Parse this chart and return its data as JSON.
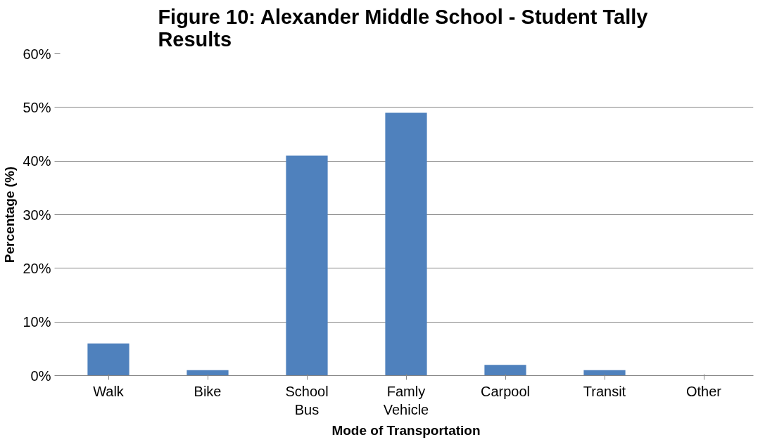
{
  "chart_data": {
    "type": "bar",
    "title": "Figure 10:  Alexander Middle School - Student Tally Results",
    "xlabel": "Mode of Transportation",
    "ylabel": "Percentage (%)",
    "categories": [
      "Walk",
      "Bike",
      "School Bus",
      "Famly Vehicle",
      "Carpool",
      "Transit",
      "Other"
    ],
    "values": [
      6,
      1,
      41,
      49,
      2,
      1,
      0
    ],
    "color": "#4f81bd",
    "ylim": [
      0,
      60
    ],
    "yticks": [
      {
        "value": 0,
        "label": "0%"
      },
      {
        "value": 10,
        "label": "10%"
      },
      {
        "value": 20,
        "label": "20%"
      },
      {
        "value": 30,
        "label": "30%"
      },
      {
        "value": 40,
        "label": "40%"
      },
      {
        "value": 50,
        "label": "50%"
      },
      {
        "value": 60,
        "label": "60%"
      }
    ],
    "grid": "y"
  }
}
